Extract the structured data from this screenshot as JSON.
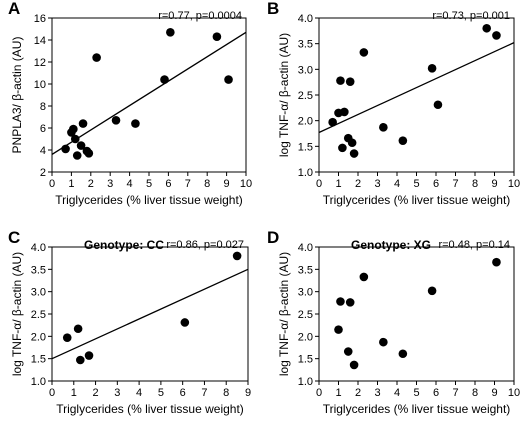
{
  "chart_data": [
    {
      "type": "scatter",
      "panel_label": "A",
      "stat_text": "r=0.77, p=0.0004",
      "genotype": "",
      "xlabel": "Triglycerides (% liver tissue weight)",
      "ylabel": "PNPLA3/ β-actin (AU)",
      "xlim": [
        0,
        10
      ],
      "ylim": [
        2,
        16
      ],
      "xticks": [
        0,
        1,
        2,
        3,
        4,
        5,
        6,
        7,
        8,
        9,
        10
      ],
      "yticks": [
        2,
        4,
        6,
        8,
        10,
        12,
        14,
        16
      ],
      "x": [
        0.7,
        1.0,
        1.1,
        1.2,
        1.3,
        1.5,
        1.6,
        1.8,
        1.9,
        2.3,
        3.3,
        4.3,
        5.8,
        6.1,
        8.5,
        9.1
      ],
      "y": [
        4.1,
        5.6,
        5.9,
        5.0,
        3.5,
        4.4,
        6.4,
        3.9,
        3.7,
        12.4,
        6.7,
        6.4,
        10.4,
        14.7,
        14.3,
        10.4
      ],
      "fit": [
        [
          0,
          3.6
        ],
        [
          10,
          14.7
        ]
      ]
    },
    {
      "type": "scatter",
      "panel_label": "B",
      "stat_text": "r=0.73, p=0.001",
      "genotype": "",
      "xlabel": "Triglycerides (% liver tissue weight)",
      "ylabel": "log TNF-α/ β-actin (AU)",
      "xlim": [
        0,
        10
      ],
      "ylim": [
        1.0,
        4.0
      ],
      "xticks": [
        0,
        1,
        2,
        3,
        4,
        5,
        6,
        7,
        8,
        9,
        10
      ],
      "yticks": [
        "1.0",
        "1.5",
        "2.0",
        "2.5",
        "3.0",
        "3.5",
        "4.0"
      ],
      "x": [
        0.7,
        1.0,
        1.1,
        1.2,
        1.3,
        1.5,
        1.6,
        1.7,
        1.8,
        2.3,
        3.3,
        4.3,
        5.8,
        6.1,
        8.6,
        9.1
      ],
      "y": [
        1.97,
        2.15,
        2.78,
        1.47,
        2.17,
        1.66,
        2.76,
        1.57,
        1.36,
        3.33,
        1.87,
        1.61,
        3.02,
        2.31,
        3.8,
        3.66
      ],
      "fit": [
        [
          0,
          1.77
        ],
        [
          10,
          3.52
        ]
      ]
    },
    {
      "type": "scatter",
      "panel_label": "C",
      "stat_text": "r=0.86, p=0.027",
      "genotype": "Genotype: CC",
      "xlabel": "Triglycerides (% liver tissue weight)",
      "ylabel": "log TNF-α/ β-actin (AU)",
      "xlim": [
        0,
        9
      ],
      "ylim": [
        1.0,
        4.0
      ],
      "xticks": [
        0,
        1,
        2,
        3,
        4,
        5,
        6,
        7,
        8,
        9
      ],
      "yticks": [
        "1.0",
        "1.5",
        "2.0",
        "2.5",
        "3.0",
        "3.5",
        "4.0"
      ],
      "x": [
        0.7,
        1.2,
        1.3,
        1.7,
        6.1,
        8.5
      ],
      "y": [
        1.97,
        2.17,
        1.47,
        1.57,
        2.31,
        3.8
      ],
      "fit": [
        [
          0,
          1.5
        ],
        [
          9,
          3.5
        ]
      ]
    },
    {
      "type": "scatter",
      "panel_label": "D",
      "stat_text": "r=0.48, p=0.14",
      "genotype": "Genotype: XG",
      "xlabel": "Triglycerides (% liver tissue weight)",
      "ylabel": "log TNF-α/ β-actin (AU)",
      "xlim": [
        0,
        10
      ],
      "ylim": [
        1.0,
        4.0
      ],
      "xticks": [
        0,
        1,
        2,
        3,
        4,
        5,
        6,
        7,
        8,
        9,
        10
      ],
      "yticks": [
        "1.0",
        "1.5",
        "2.0",
        "2.5",
        "3.0",
        "3.5",
        "4.0"
      ],
      "x": [
        1.0,
        1.1,
        1.5,
        1.6,
        1.8,
        2.3,
        3.3,
        4.3,
        5.8,
        9.1
      ],
      "y": [
        2.15,
        2.78,
        1.66,
        2.76,
        1.36,
        3.33,
        1.87,
        1.61,
        3.02,
        3.66
      ],
      "fit": null
    }
  ]
}
